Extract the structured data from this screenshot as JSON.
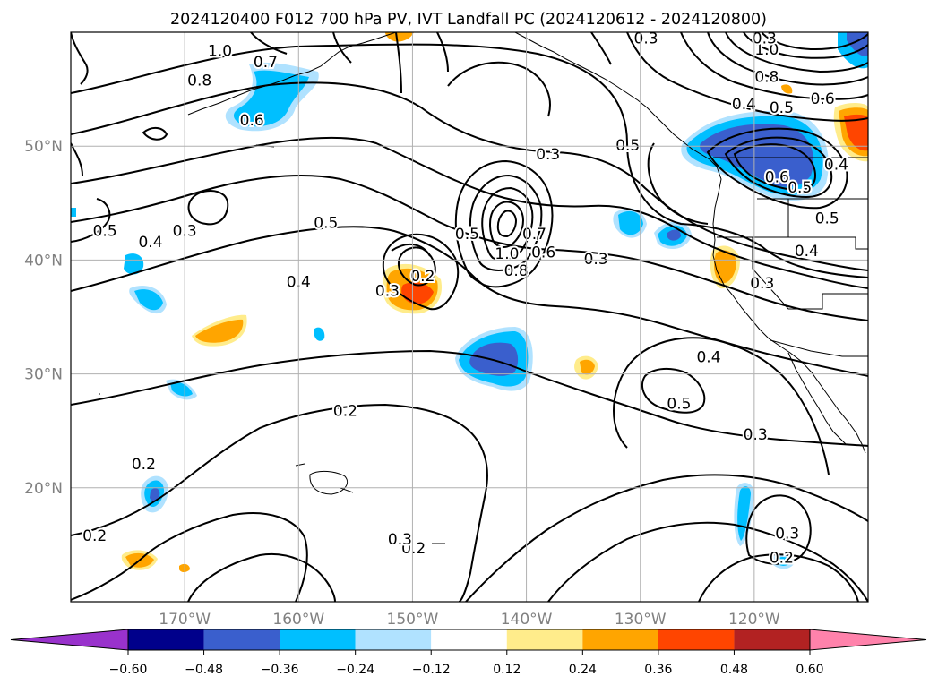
{
  "title": "2024120400 F012 700 hPa PV, IVT Landfall PC (2024120612 - 2024120800)",
  "map": {
    "lon_range": [
      -180,
      -110
    ],
    "lat_range": [
      10,
      60
    ],
    "lon_ticks": [
      {
        "value": -170,
        "label": "170°W"
      },
      {
        "value": -160,
        "label": "160°W"
      },
      {
        "value": -150,
        "label": "150°W"
      },
      {
        "value": -140,
        "label": "140°W"
      },
      {
        "value": -130,
        "label": "130°W"
      },
      {
        "value": -120,
        "label": "120°W"
      }
    ],
    "lat_ticks": [
      {
        "value": 20,
        "label": "20°N"
      },
      {
        "value": 30,
        "label": "30°N"
      },
      {
        "value": 40,
        "label": "40°N"
      },
      {
        "value": 50,
        "label": "50°N"
      }
    ],
    "grid": true,
    "tick_label_color": "#808080",
    "contour_color": "#000000"
  },
  "contour_labels": [
    {
      "lon": -170,
      "lat": 42.6,
      "text": "0.3"
    },
    {
      "lon": -166.9,
      "lat": 58.4,
      "text": "1.0"
    },
    {
      "lon": -168.7,
      "lat": 55.8,
      "text": "0.8"
    },
    {
      "lon": -162.9,
      "lat": 57.4,
      "text": "0.7"
    },
    {
      "lon": -164.1,
      "lat": 52.3,
      "text": "0.6"
    },
    {
      "lon": -173,
      "lat": 41.6,
      "text": "0.4"
    },
    {
      "lon": -177,
      "lat": 42.6,
      "text": "0.5"
    },
    {
      "lon": -157.6,
      "lat": 43.3,
      "text": "0.5"
    },
    {
      "lon": -160,
      "lat": 38.1,
      "text": "0.4"
    },
    {
      "lon": -152.2,
      "lat": 37.3,
      "text": "0.3"
    },
    {
      "lon": -149.1,
      "lat": 38.6,
      "text": "0.2"
    },
    {
      "lon": -145.2,
      "lat": 42.3,
      "text": "0.5"
    },
    {
      "lon": -141.7,
      "lat": 40.6,
      "text": "1.0"
    },
    {
      "lon": -140.9,
      "lat": 39.1,
      "text": "0.8"
    },
    {
      "lon": -139.3,
      "lat": 42.3,
      "text": "0.7"
    },
    {
      "lon": -138.5,
      "lat": 40.7,
      "text": "0.6"
    },
    {
      "lon": -138.1,
      "lat": 49.3,
      "text": "0.3"
    },
    {
      "lon": -133.9,
      "lat": 40.1,
      "text": "0.3"
    },
    {
      "lon": -131.1,
      "lat": 50.1,
      "text": "0.5"
    },
    {
      "lon": -118.9,
      "lat": 58.5,
      "text": "1.0"
    },
    {
      "lon": -118.9,
      "lat": 56.1,
      "text": "0.8"
    },
    {
      "lon": -120.9,
      "lat": 53.7,
      "text": "0.4"
    },
    {
      "lon": -117.6,
      "lat": 53.4,
      "text": "0.5"
    },
    {
      "lon": -114,
      "lat": 54.2,
      "text": "0.6"
    },
    {
      "lon": -118,
      "lat": 47.3,
      "text": "0.6"
    },
    {
      "lon": -116,
      "lat": 46.4,
      "text": "0.5"
    },
    {
      "lon": -113.6,
      "lat": 43.7,
      "text": "0.5"
    },
    {
      "lon": -112.8,
      "lat": 48.4,
      "text": "0.4"
    },
    {
      "lon": -115.4,
      "lat": 40.8,
      "text": "0.4"
    },
    {
      "lon": -119.3,
      "lat": 38,
      "text": "0.3"
    },
    {
      "lon": -124,
      "lat": 31.5,
      "text": "0.4"
    },
    {
      "lon": -126.6,
      "lat": 27.4,
      "text": "0.5"
    },
    {
      "lon": -119.9,
      "lat": 24.7,
      "text": "0.3"
    },
    {
      "lon": -117.1,
      "lat": 16,
      "text": "0.3"
    },
    {
      "lon": -117.6,
      "lat": 13.9,
      "text": "0.2"
    },
    {
      "lon": -155.9,
      "lat": 26.8,
      "text": "0.2"
    },
    {
      "lon": -173.6,
      "lat": 22.1,
      "text": "0.2"
    },
    {
      "lon": -177.9,
      "lat": 15.8,
      "text": "0.2"
    },
    {
      "lon": -149.9,
      "lat": 14.7,
      "text": "0.2"
    },
    {
      "lon": -151.1,
      "lat": 15.5,
      "text": "0.3"
    },
    {
      "lon": -119.1,
      "lat": 59.5,
      "text": "0.3"
    },
    {
      "lon": -129.5,
      "lat": 59.5,
      "text": "0.3"
    }
  ],
  "colorbar": {
    "colors": [
      "#9932cc",
      "#00008b",
      "#3a5fcd",
      "#00bfff",
      "#b0e2ff",
      "#ffffff",
      "#ffec8b",
      "#ffa500",
      "#ff4500",
      "#b22222",
      "#ff82ab"
    ],
    "tick_labels": [
      "−0.60",
      "−0.48",
      "−0.36",
      "−0.24",
      "−0.12",
      "0.12",
      "0.24",
      "0.36",
      "0.48",
      "0.60"
    ]
  }
}
